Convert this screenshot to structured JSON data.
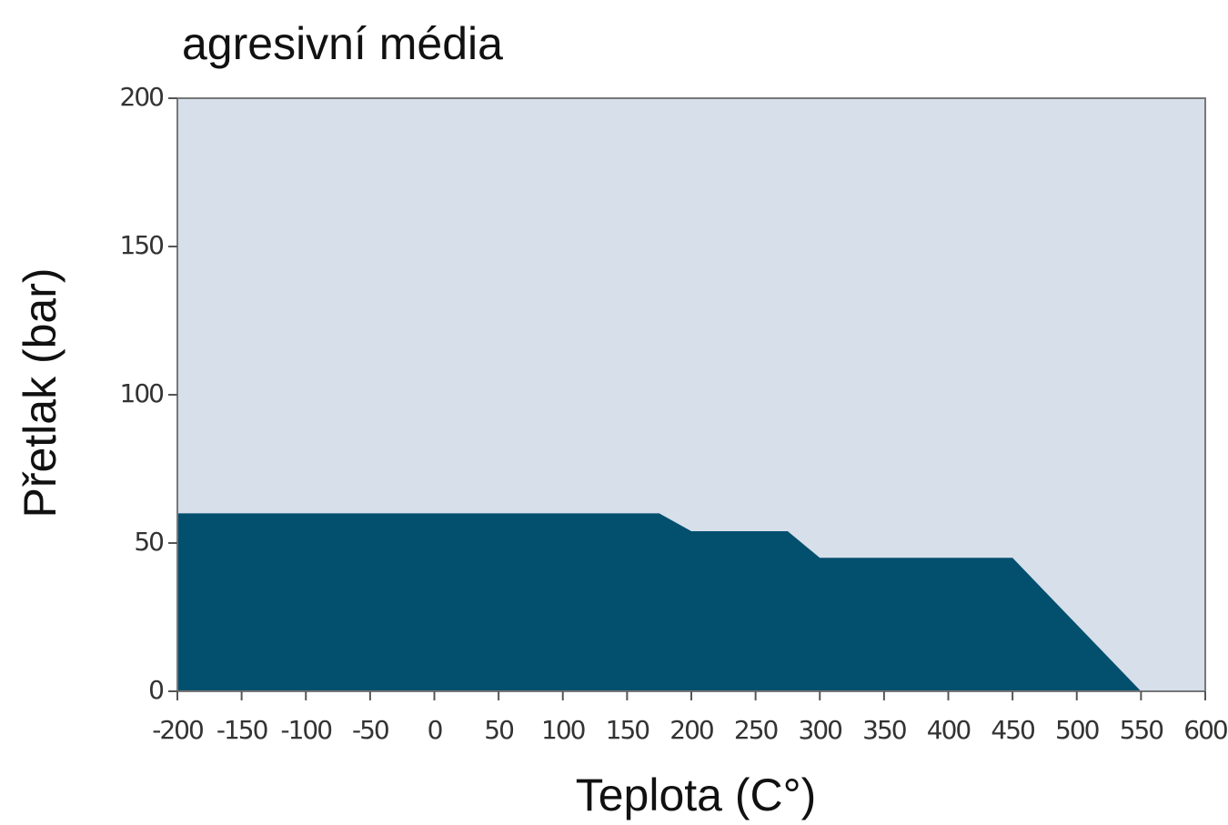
{
  "chart_data": {
    "type": "area",
    "title": "agresivní média",
    "x_label": "Teplota (C°)",
    "y_label": "Přetlak (bar)",
    "x": [
      -200,
      175,
      200,
      275,
      300,
      450,
      550
    ],
    "values": [
      60,
      60,
      54,
      54,
      45,
      45,
      0
    ],
    "color": "#034f6e",
    "background": "#d6dfea",
    "xlim": [
      -200,
      600
    ],
    "xticks": [
      -200,
      -150,
      -100,
      -50,
      0,
      50,
      100,
      150,
      200,
      250,
      300,
      350,
      400,
      450,
      500,
      550,
      600
    ],
    "ylim": [
      0,
      200
    ],
    "yticks": [
      0,
      50,
      100,
      150,
      200
    ]
  }
}
